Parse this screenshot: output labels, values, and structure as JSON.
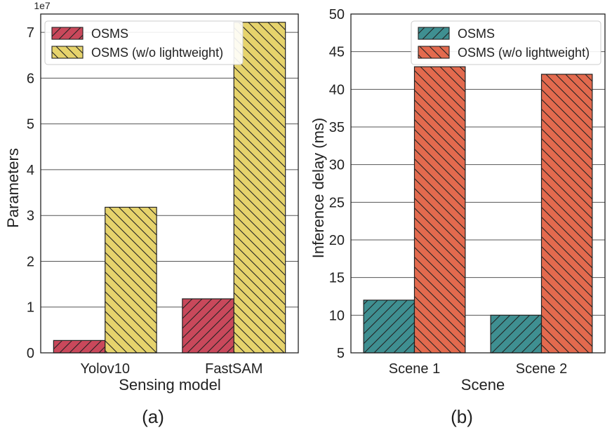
{
  "chart_data": [
    {
      "type": "bar",
      "panel_label": "(a)",
      "exponent_label": "1e7",
      "xlabel": "Sensing model",
      "ylabel": "Parameters",
      "categories": [
        "Yolov10",
        "FastSAM"
      ],
      "ylim": [
        0,
        7.4
      ],
      "yticks": [
        0,
        1,
        2,
        3,
        4,
        5,
        6,
        7
      ],
      "ytick_labels": [
        "0",
        "1",
        "2",
        "3",
        "4",
        "5",
        "6",
        "7"
      ],
      "grid": true,
      "legend_position": "top-left",
      "series": [
        {
          "name": "OSMS",
          "values": [
            0.27,
            1.18
          ],
          "color": "#c9485b",
          "hatch": "/"
        },
        {
          "name": "OSMS (w/o lightweight)",
          "values": [
            3.18,
            7.22
          ],
          "color": "#e6d36c",
          "hatch": "\\"
        }
      ]
    },
    {
      "type": "bar",
      "panel_label": "(b)",
      "xlabel": "Scene",
      "ylabel": "Inference delay (ms)",
      "categories": [
        "Scene 1",
        "Scene 2"
      ],
      "ylim": [
        5,
        50
      ],
      "yticks": [
        5,
        10,
        15,
        20,
        25,
        30,
        35,
        40,
        45,
        50
      ],
      "ytick_labels": [
        "5",
        "10",
        "15",
        "20",
        "25",
        "30",
        "35",
        "40",
        "45",
        "50"
      ],
      "grid": true,
      "legend_position": "top-right",
      "series": [
        {
          "name": "OSMS",
          "values": [
            12,
            10
          ],
          "color": "#3f8f91",
          "hatch": "/"
        },
        {
          "name": "OSMS (w/o lightweight)",
          "values": [
            43,
            42
          ],
          "color": "#e36a4e",
          "hatch": "\\"
        }
      ]
    }
  ]
}
